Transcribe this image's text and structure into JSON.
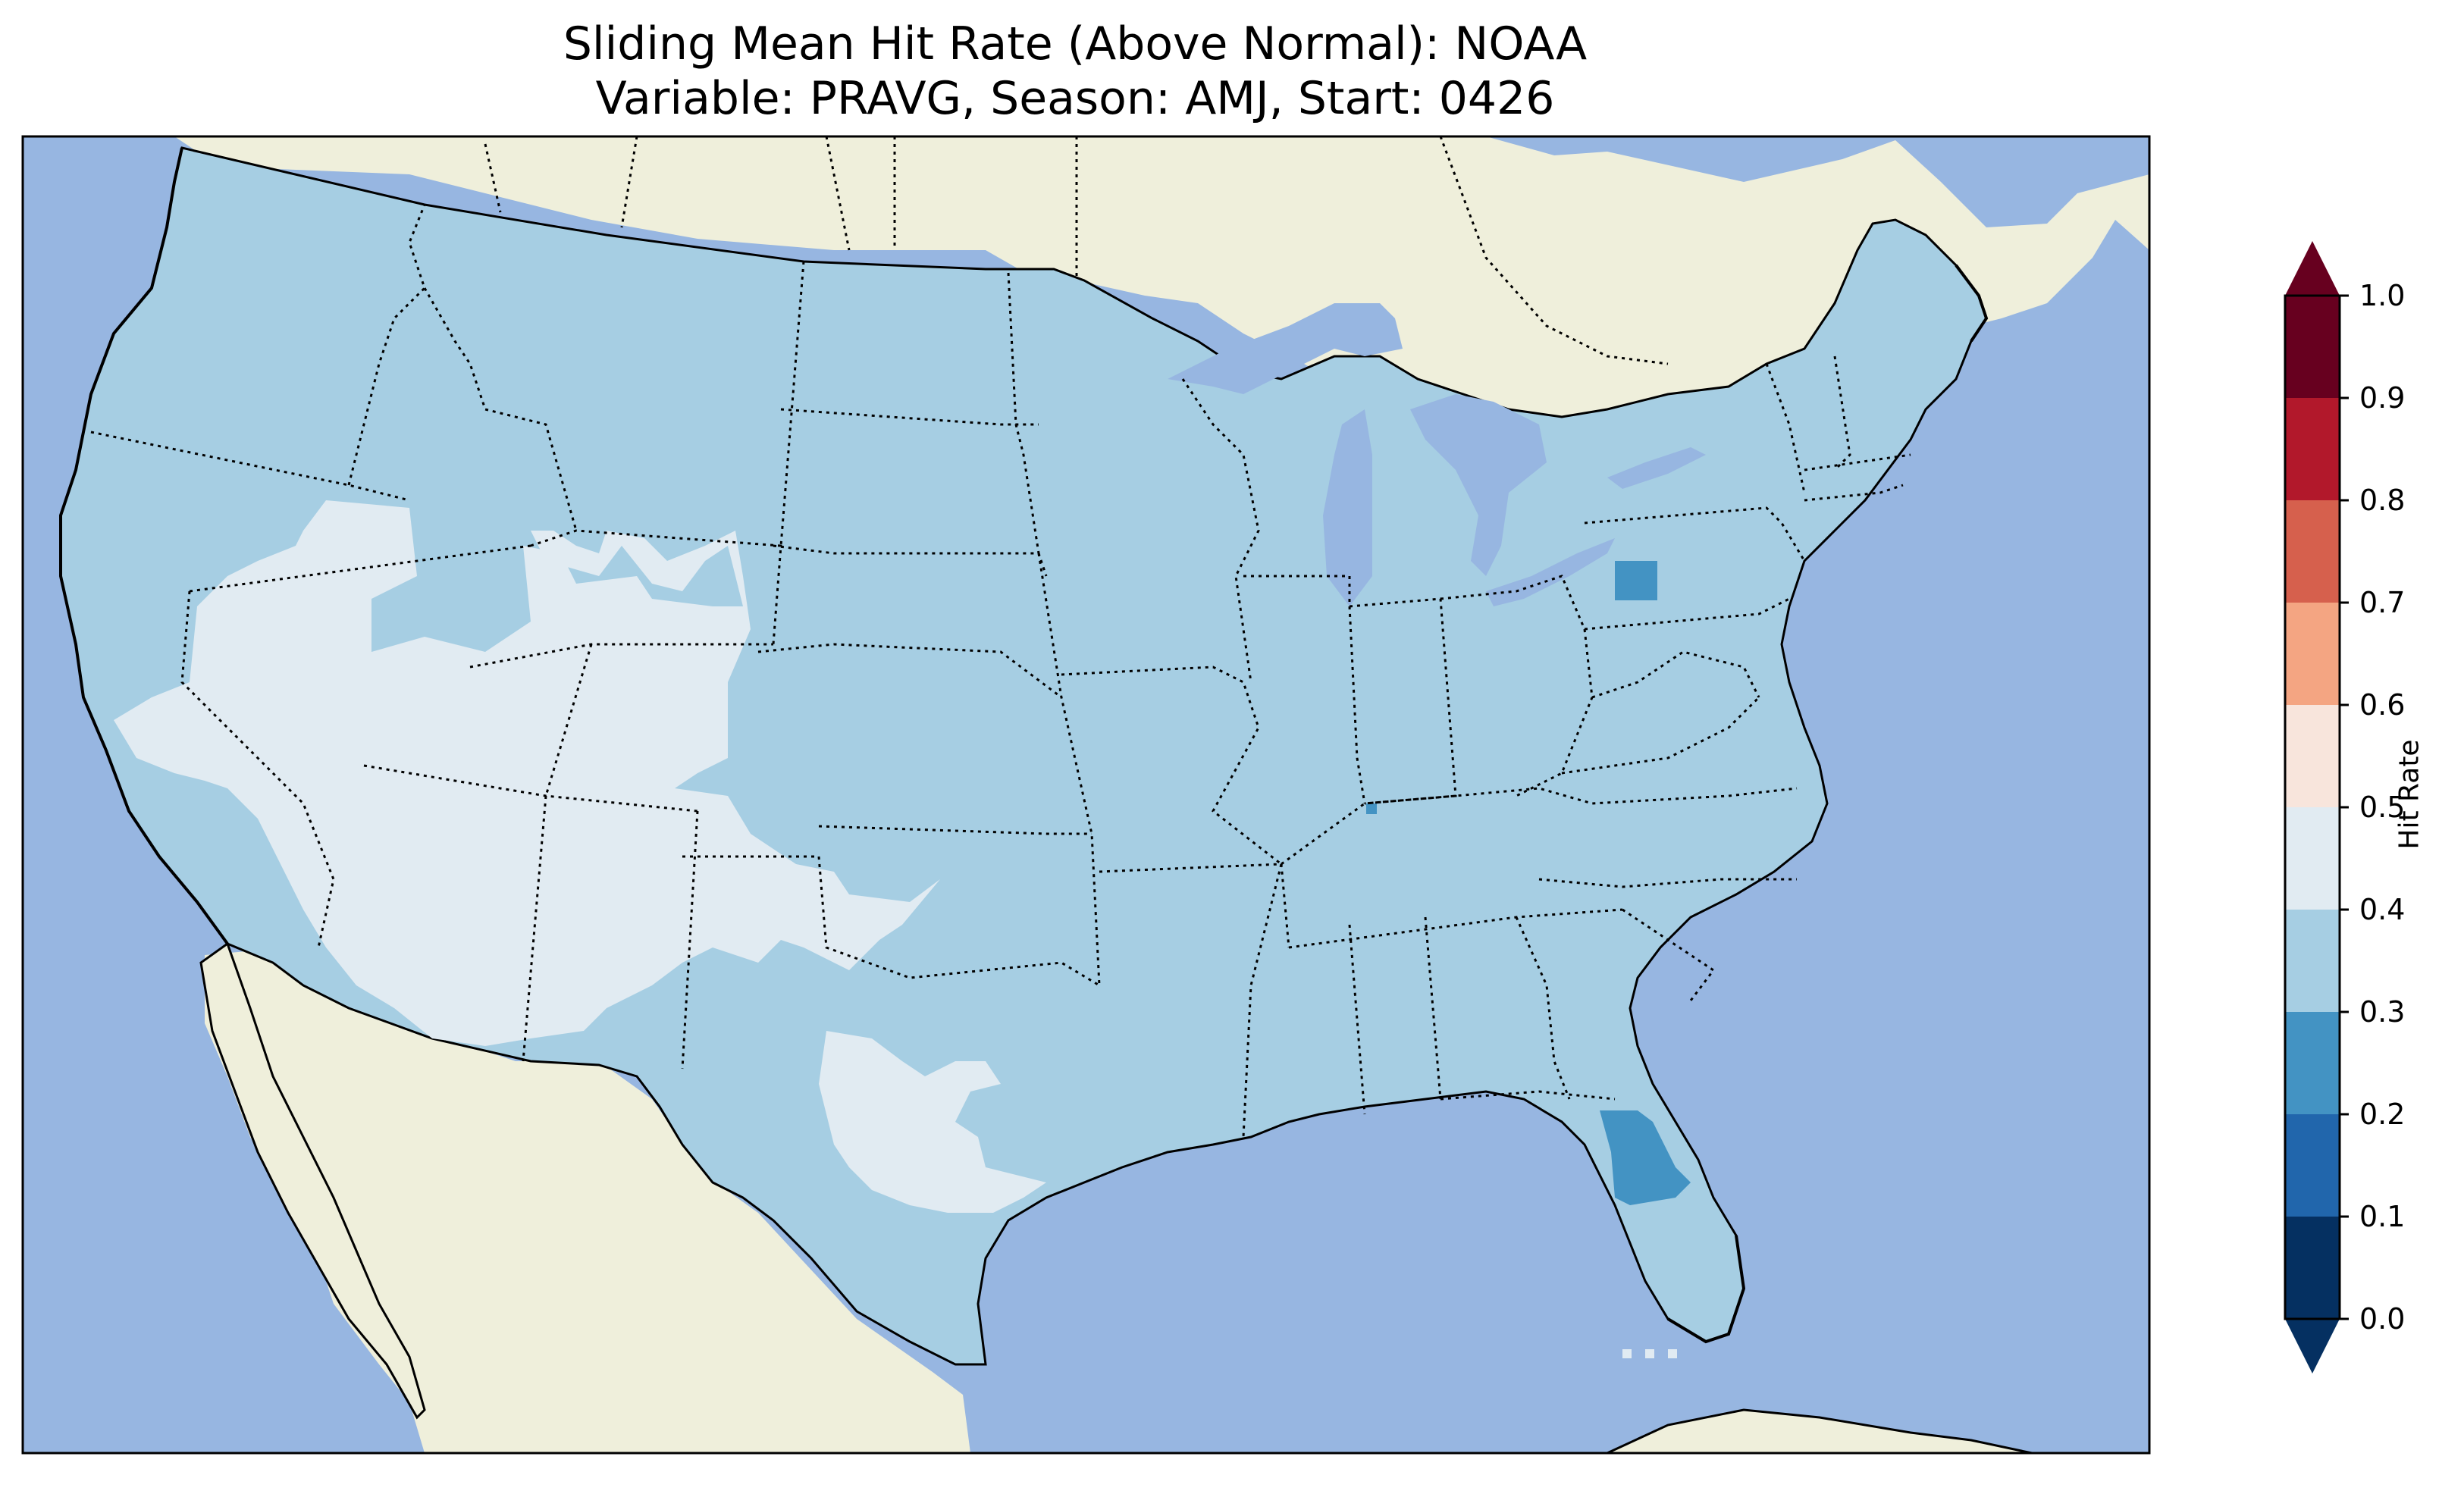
{
  "title": {
    "line1": "Sliding Mean Hit Rate (Above Normal): NOAA",
    "line2": "Variable: PRAVG, Season: AMJ, Start: 0426"
  },
  "colorbar": {
    "label": "Hit Rate",
    "ticks": [
      "0.0",
      "0.1",
      "0.2",
      "0.3",
      "0.4",
      "0.5",
      "0.6",
      "0.7",
      "0.8",
      "0.9",
      "1.0"
    ],
    "bins": [
      {
        "range": [
          0.0,
          0.1
        ],
        "color": "#053061"
      },
      {
        "range": [
          0.1,
          0.2
        ],
        "color": "#2166ac"
      },
      {
        "range": [
          0.2,
          0.3
        ],
        "color": "#4393c3"
      },
      {
        "range": [
          0.3,
          0.4
        ],
        "color": "#a6cee3"
      },
      {
        "range": [
          0.4,
          0.5
        ],
        "color": "#e1ebf2"
      },
      {
        "range": [
          0.5,
          0.6
        ],
        "color": "#f8e5dc"
      },
      {
        "range": [
          0.6,
          0.7
        ],
        "color": "#f4a582"
      },
      {
        "range": [
          0.7,
          0.8
        ],
        "color": "#d6604d"
      },
      {
        "range": [
          0.8,
          0.9
        ],
        "color": "#b2182b"
      },
      {
        "range": [
          0.9,
          1.0
        ],
        "color": "#67001f"
      }
    ],
    "extend": "both"
  },
  "map": {
    "colors": {
      "ocean": "#97b6e1",
      "land": "#efefdb",
      "hit_0.3_0.4": "#a6cee3",
      "hit_0.4_0.5": "#e1ebf2",
      "hit_0.2_0.3": "#4393c3"
    },
    "features": [
      "coastlines",
      "country borders",
      "state borders",
      "lakes"
    ]
  }
}
